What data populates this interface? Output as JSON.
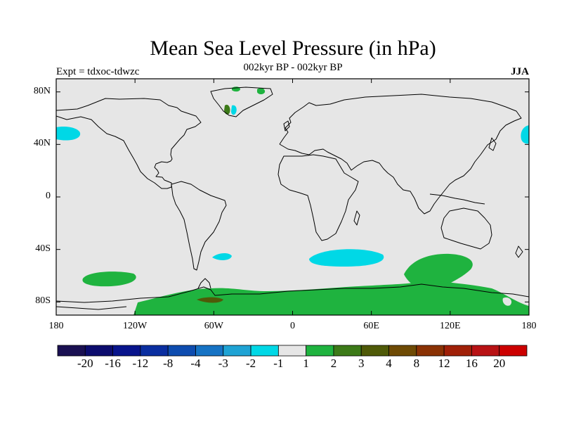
{
  "title": "Mean Sea Level Pressure (in hPa)",
  "subtitle": "002kyr BP - 002kyr BP",
  "experiment": "Expt = tdxoc-tdwzc",
  "season": "JJA",
  "map": {
    "projection": "cylindrical-equidistant",
    "lon_range": [
      -180,
      180
    ],
    "lat_range": [
      -90,
      90
    ],
    "background_color": "#e6e6e6",
    "lat_ticks": [
      {
        "lat": 80,
        "label": "80N"
      },
      {
        "lat": 40,
        "label": "40N"
      },
      {
        "lat": 0,
        "label": "0"
      },
      {
        "lat": -40,
        "label": "40S"
      },
      {
        "lat": -80,
        "label": "80S"
      }
    ],
    "lon_ticks": [
      {
        "lon": -180,
        "label": "180"
      },
      {
        "lon": -120,
        "label": "120W"
      },
      {
        "lon": -60,
        "label": "60W"
      },
      {
        "lon": 0,
        "label": "0"
      },
      {
        "lon": 60,
        "label": "60E"
      },
      {
        "lon": 120,
        "label": "120E"
      },
      {
        "lon": 180,
        "label": "180"
      }
    ]
  },
  "colorbar": {
    "colors": [
      "#1a1052",
      "#0c0c6e",
      "#08148c",
      "#0a2ea0",
      "#0e4caf",
      "#1673c4",
      "#1fa3d4",
      "#00d8e6",
      "#e6e6e6",
      "#1fb33f",
      "#3c7a18",
      "#4f5a08",
      "#6e4a04",
      "#8a3204",
      "#a02008",
      "#b81214",
      "#cc0000"
    ],
    "labels": [
      "-20",
      "-16",
      "-12",
      "-8",
      "-4",
      "-3",
      "-2",
      "-1",
      "1",
      "2",
      "3",
      "4",
      "8",
      "12",
      "16",
      "20"
    ]
  },
  "anomaly_regions": [
    {
      "name": "north-pacific-west-low",
      "class": "-1",
      "color": "#00d8e6",
      "lon": -169,
      "lat": 48
    },
    {
      "name": "north-pacific-east-low",
      "class": "-1",
      "color": "#00d8e6",
      "lon": 178,
      "lat": 45
    },
    {
      "name": "greenland-low",
      "class": "-1",
      "color": "#00d8e6",
      "lon": -45,
      "lat": 67
    },
    {
      "name": "greenland-high",
      "class": "3",
      "color": "#3c7a18",
      "lon": -49,
      "lat": 68
    },
    {
      "name": "greenland-north-high-1",
      "class": "2",
      "color": "#1fb33f",
      "lon": -41,
      "lat": 83
    },
    {
      "name": "greenland-north-high-2",
      "class": "2",
      "color": "#1fb33f",
      "lon": -21,
      "lat": 82
    },
    {
      "name": "south-atlantic-low",
      "class": "-1",
      "color": "#00d8e6",
      "lon": -50,
      "lat": -46
    },
    {
      "name": "indian-ocean-low",
      "class": "-1",
      "color": "#00d8e6",
      "lon": 37,
      "lat": -47
    },
    {
      "name": "south-pacific-high",
      "class": "2",
      "color": "#1fb33f",
      "lon": -140,
      "lat": -63
    },
    {
      "name": "southern-ocean-high",
      "class": "2",
      "color": "#1fb33f",
      "lon": 120,
      "lat": -55
    },
    {
      "name": "antarctic-high",
      "class": "2",
      "color": "#1fb33f",
      "lon": 0,
      "lat": -78
    },
    {
      "name": "weddell-high",
      "class": "4",
      "color": "#4f5a08",
      "lon": -60,
      "lat": -78
    }
  ]
}
